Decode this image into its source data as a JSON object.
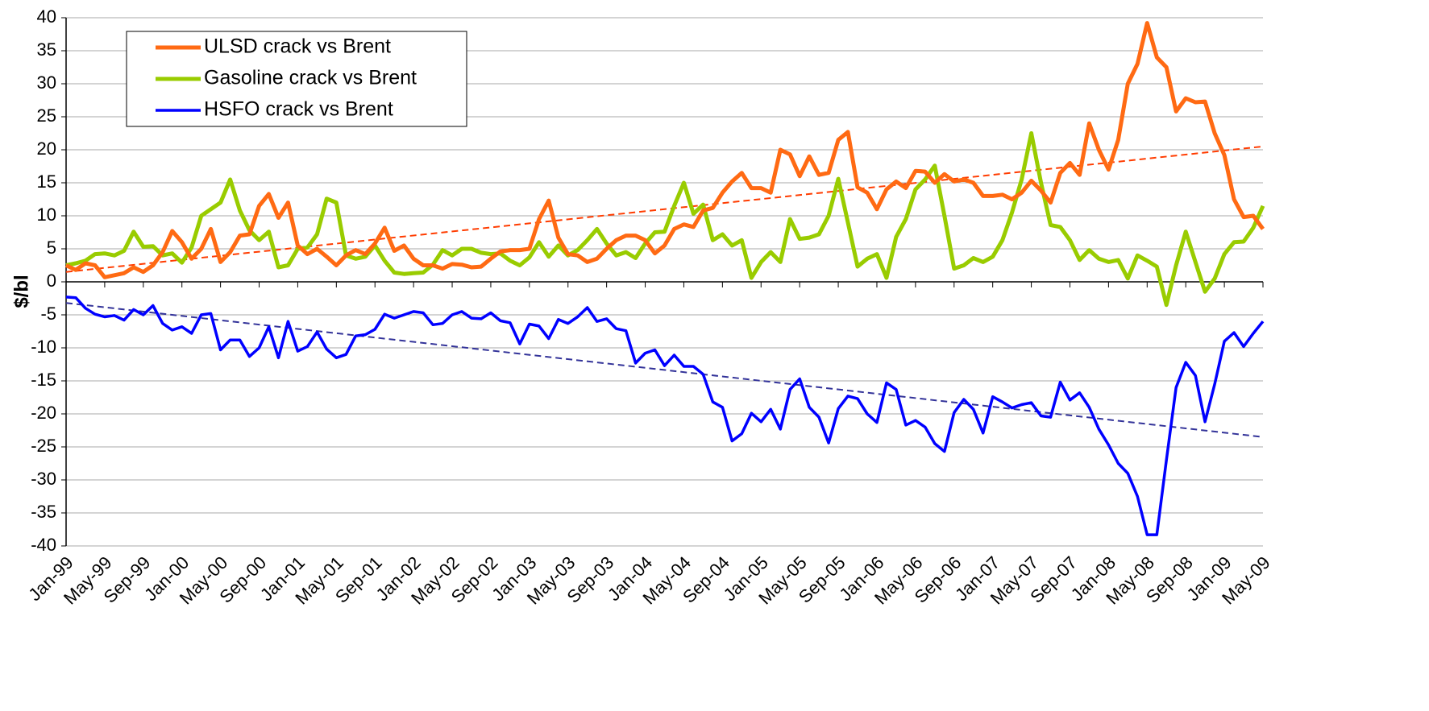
{
  "chart_data": {
    "type": "line",
    "y_label": "$/bl",
    "categories": [
      "Jan-99",
      null,
      null,
      null,
      "May-99",
      null,
      null,
      null,
      "Sep-99",
      null,
      null,
      null,
      "Jan-00",
      null,
      null,
      null,
      "May-00",
      null,
      null,
      null,
      "Sep-00",
      null,
      null,
      null,
      "Jan-01",
      null,
      null,
      null,
      "May-01",
      null,
      null,
      null,
      "Sep-01",
      null,
      null,
      null,
      "Jan-02",
      null,
      null,
      null,
      "May-02",
      null,
      null,
      null,
      "Sep-02",
      null,
      null,
      null,
      "Jan-03",
      null,
      null,
      null,
      "May-03",
      null,
      null,
      null,
      "Sep-03",
      null,
      null,
      null,
      "Jan-04",
      null,
      null,
      null,
      "May-04",
      null,
      null,
      null,
      "Sep-04",
      null,
      null,
      null,
      "Jan-05",
      null,
      null,
      null,
      "May-05",
      null,
      null,
      null,
      "Sep-05",
      null,
      null,
      null,
      "Jan-06",
      null,
      null,
      null,
      "May-06",
      null,
      null,
      null,
      "Sep-06",
      null,
      null,
      null,
      "Jan-07",
      null,
      null,
      null,
      "May-07",
      null,
      null,
      null,
      "Sep-07",
      null,
      null,
      null,
      "Jan-08",
      null,
      null,
      null,
      "May-08",
      null,
      null,
      null,
      "Sep-08",
      null,
      null,
      null,
      "Jan-09",
      null,
      null,
      null,
      "May-09"
    ],
    "series": [
      {
        "name": "ULSD crack vs Brent",
        "color": "#ff6a13",
        "width": 5,
        "values": [
          2.5,
          1.8,
          2.8,
          2.5,
          0.7,
          1.0,
          1.3,
          2.2,
          1.5,
          2.5,
          4.5,
          7.7,
          6,
          3.5,
          5,
          8,
          3,
          4.5,
          7,
          7.2,
          11.5,
          13.3,
          9.7,
          12,
          5.5,
          4.2,
          5,
          3.8,
          2.5,
          4,
          4.8,
          4.2,
          5.8,
          8.2,
          4.7,
          5.5,
          3.5,
          2.5,
          2.5,
          2.0,
          2.7,
          2.6,
          2.2,
          2.3,
          3.5,
          4.6,
          4.8,
          4.8,
          5.0,
          9.5,
          12.3,
          6.7,
          4.2,
          4.0,
          3.0,
          3.5,
          5.0,
          6.3,
          7.0,
          7.0,
          6.3,
          4.3,
          5.5,
          8.0,
          8.7,
          8.3,
          10.8,
          11.2,
          13.5,
          15.2,
          16.5,
          14.2,
          14.2,
          13.5,
          20.0,
          19.3,
          16.0,
          19.0,
          16.2,
          16.5,
          21.5,
          22.7,
          14.3,
          13.5,
          11.0,
          14.0,
          15.2,
          14.2,
          16.8,
          16.7,
          15.0,
          16.3,
          15.2,
          15.5,
          15.0,
          13.0,
          13.0,
          13.2,
          12.5,
          13.5,
          15.3,
          13.8,
          12.0,
          16.5,
          18.0,
          16.2,
          24.0,
          20.0,
          17.0,
          21.5,
          30.0,
          33.0,
          39.2,
          34.0,
          32.5,
          25.8,
          27.8,
          27.2,
          27.3,
          22.5,
          19.2,
          12.5,
          9.8,
          10.0,
          8.0
        ]
      },
      {
        "name": "Gasoline crack vs Brent",
        "color": "#99cc00",
        "width": 5,
        "values": [
          2.5,
          2.8,
          3.2,
          4.2,
          4.3,
          4.0,
          4.7,
          7.6,
          5.3,
          5.4,
          4.0,
          4.3,
          2.9,
          5.2,
          10.0,
          11.0,
          12.0,
          15.5,
          10.8,
          7.8,
          6.3,
          7.6,
          2.2,
          2.5,
          5.0,
          5.2,
          7.2,
          12.6,
          12.0,
          4.0,
          3.5,
          3.8,
          5.5,
          3.2,
          1.4,
          1.2,
          1.3,
          1.4,
          2.6,
          4.8,
          4.0,
          5.0,
          5.0,
          4.4,
          4.2,
          4.3,
          3.2,
          2.5,
          3.7,
          6.0,
          3.8,
          5.5,
          4.0,
          4.8,
          6.3,
          8.0,
          5.8,
          4.0,
          4.5,
          3.6,
          5.8,
          7.5,
          7.6,
          11.5,
          15.0,
          10.3,
          11.7,
          6.3,
          7.2,
          5.5,
          6.3,
          0.6,
          3.0,
          4.5,
          3.0,
          9.5,
          6.5,
          6.7,
          7.2,
          10.0,
          15.6,
          9.0,
          2.3,
          3.5,
          4.2,
          0.6,
          6.8,
          9.5,
          14.0,
          15.5,
          17.6,
          10.0,
          2.0,
          2.5,
          3.6,
          3.0,
          3.8,
          6.3,
          10.5,
          15.5,
          22.5,
          15.0,
          8.6,
          8.3,
          6.3,
          3.3,
          4.8,
          3.5,
          3.0,
          3.3,
          0.5,
          4.0,
          3.2,
          2.3,
          -3.5,
          2.5,
          7.6,
          3.0,
          -1.5,
          0.5,
          4.2,
          6.0,
          6.1,
          8.2,
          11.5
        ]
      },
      {
        "name": "HSFO crack vs Brent",
        "color": "#0000ff",
        "width": 3.5,
        "values": [
          -2.3,
          -2.4,
          -4.0,
          -4.9,
          -5.3,
          -5.1,
          -5.8,
          -4.2,
          -5.0,
          -3.6,
          -6.3,
          -7.3,
          -6.8,
          -7.8,
          -5.0,
          -4.8,
          -10.3,
          -8.8,
          -8.8,
          -11.3,
          -10.0,
          -6.8,
          -11.5,
          -6.0,
          -10.5,
          -9.8,
          -7.6,
          -10.2,
          -11.5,
          -11.0,
          -8.2,
          -8.0,
          -7.2,
          -4.9,
          -5.5,
          -5.0,
          -4.5,
          -4.7,
          -6.5,
          -6.3,
          -5.0,
          -4.5,
          -5.5,
          -5.6,
          -4.7,
          -5.9,
          -6.2,
          -9.4,
          -6.4,
          -6.7,
          -8.6,
          -5.7,
          -6.3,
          -5.3,
          -3.9,
          -6.0,
          -5.6,
          -7.1,
          -7.4,
          -12.3,
          -10.8,
          -10.3,
          -12.7,
          -11.1,
          -12.8,
          -12.8,
          -14.0,
          -18.2,
          -19.0,
          -24.1,
          -23.0,
          -19.9,
          -21.2,
          -19.3,
          -22.3,
          -16.3,
          -14.7,
          -19.0,
          -20.5,
          -24.4,
          -19.2,
          -17.3,
          -17.7,
          -20.0,
          -21.3,
          -15.3,
          -16.3,
          -21.7,
          -21.0,
          -22.0,
          -24.5,
          -25.7,
          -19.8,
          -17.8,
          -19.3,
          -22.9,
          -17.4,
          -18.2,
          -19.1,
          -18.6,
          -18.3,
          -20.3,
          -20.5,
          -15.2,
          -17.9,
          -16.8,
          -19.0,
          -22.3,
          -24.7,
          -27.5,
          -29.0,
          -32.5,
          -38.3,
          -38.3,
          -27.0,
          -16.0,
          -12.2,
          -14.2,
          -21.2,
          -15.5,
          -9.0,
          -7.7,
          -9.8,
          -7.8,
          -6.0
        ]
      }
    ],
    "trendlines": [
      {
        "color": "#ff3c00",
        "values": [
          1.5,
          20.5
        ]
      },
      {
        "color": "#333399",
        "values": [
          -3.2,
          -23.5
        ]
      }
    ],
    "ylim": [
      -40,
      40
    ],
    "yticks": [
      -40,
      -35,
      -30,
      -25,
      -20,
      -15,
      -10,
      -5,
      0,
      5,
      10,
      15,
      20,
      25,
      30,
      35,
      40
    ],
    "grid": true,
    "legend": "top-left"
  }
}
